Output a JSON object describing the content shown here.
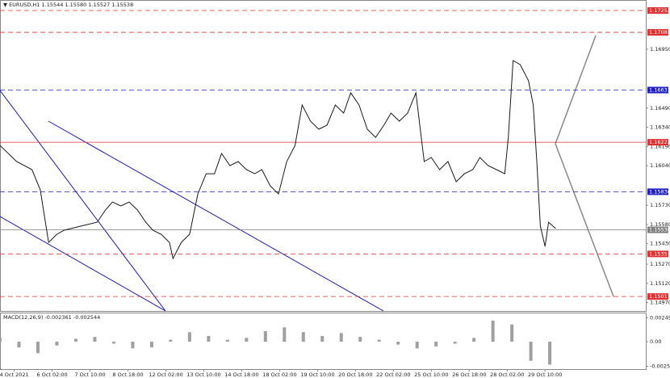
{
  "chart_data": {
    "type": "line",
    "title": "▼ EURUSD,H1  1.15544 1.15580 1.15527 1.15538",
    "x": [
      0,
      14,
      27,
      34,
      41,
      48,
      54,
      68,
      82,
      89,
      95,
      102,
      109,
      116,
      123,
      129,
      136,
      143,
      146,
      153,
      160,
      167,
      174,
      181,
      187,
      194,
      201,
      208,
      215,
      221,
      228,
      235,
      242,
      249,
      255,
      262,
      269,
      276,
      283,
      290,
      296,
      303,
      310,
      317,
      324,
      330,
      337,
      344,
      351,
      358,
      364,
      371,
      378,
      385,
      392,
      399,
      405,
      412,
      419,
      426,
      429,
      433,
      439,
      446,
      450,
      453,
      456,
      460,
      463,
      469
    ],
    "values": [
      1.16198,
      1.16072,
      1.16009,
      1.15851,
      1.1544,
      1.15504,
      1.15535,
      1.15567,
      1.15598,
      1.15693,
      1.15756,
      1.15725,
      1.15756,
      1.15693,
      1.15598,
      1.15535,
      1.15504,
      1.1544,
      1.15314,
      1.1544,
      1.15504,
      1.15819,
      1.15977,
      1.15977,
      1.16135,
      1.1604,
      1.16072,
      1.16009,
      1.15977,
      1.16009,
      1.15882,
      1.15819,
      1.16072,
      1.16198,
      1.16514,
      1.16388,
      1.16325,
      1.16356,
      1.16514,
      1.16451,
      1.16609,
      1.16514,
      1.16325,
      1.16261,
      1.16356,
      1.16451,
      1.16388,
      1.16451,
      1.16609,
      1.16072,
      1.16104,
      1.16009,
      1.16072,
      1.15914,
      1.15977,
      1.16009,
      1.16104,
      1.1604,
      1.16009,
      1.15977,
      1.16261,
      1.16861,
      1.1683,
      1.16704,
      1.16514,
      1.16072,
      1.15567,
      1.15409,
      1.15598,
      1.15548
    ],
    "color": "#1a1a1a",
    "xlim": [
      0,
      545
    ],
    "ylim": [
      1.14904,
      1.17335
    ],
    "xticks": [
      {
        "value": 12,
        "label": "4 Oct 2021"
      },
      {
        "value": 44,
        "label": "6 Oct 02:00"
      },
      {
        "value": 76,
        "label": "7 Oct 10:00"
      },
      {
        "value": 108,
        "label": "8 Oct 18:00"
      },
      {
        "value": 140,
        "label": "12 Oct 02:00"
      },
      {
        "value": 172,
        "label": "13 Oct 10:00"
      },
      {
        "value": 204,
        "label": "14 Oct 18:00"
      },
      {
        "value": 236,
        "label": "18 Oct 02:00"
      },
      {
        "value": 268,
        "label": "19 Oct 10:00"
      },
      {
        "value": 300,
        "label": "20 Oct 18:00"
      },
      {
        "value": 332,
        "label": "22 Oct 02:00"
      },
      {
        "value": 364,
        "label": "25 Oct 10:00"
      },
      {
        "value": 396,
        "label": "26 Oct 18:00"
      },
      {
        "value": 428,
        "label": "28 Oct 02:00"
      },
      {
        "value": 460,
        "label": "29 Oct 10:00"
      }
    ],
    "yticks": [
      {
        "value": 1.1695,
        "label": "1.16950"
      },
      {
        "value": 1.1649,
        "label": "1.16490"
      },
      {
        "value": 1.1634,
        "label": "1.16340"
      },
      {
        "value": 1.1619,
        "label": "1.16190"
      },
      {
        "value": 1.1604,
        "label": "1.16040"
      },
      {
        "value": 1.1573,
        "label": "1.15730"
      },
      {
        "value": 1.1558,
        "label": "1.15580"
      },
      {
        "value": 1.1543,
        "label": "1.15430"
      },
      {
        "value": 1.1527,
        "label": "1.15270"
      },
      {
        "value": 1.1512,
        "label": "1.15120"
      },
      {
        "value": 1.1497,
        "label": "1.14970"
      }
    ],
    "levels": [
      {
        "value": 1.17253,
        "color": "#e03030",
        "dash": true
      },
      {
        "value": 1.17082,
        "color": "#e03030",
        "dash": true
      },
      {
        "value": 1.16631,
        "color": "#2020c0",
        "dash": true
      },
      {
        "value": 1.16223,
        "color": "#e03030",
        "dash": false
      },
      {
        "value": 1.15836,
        "color": "#2020c0",
        "dash": true
      },
      {
        "value": 1.15538,
        "color": "#808080",
        "dash": false
      },
      {
        "value": 1.1535,
        "color": "#e03030",
        "dash": true
      },
      {
        "value": 1.15017,
        "color": "#e03030",
        "dash": true
      }
    ],
    "macd": {
      "label": "MACD(12,26,9) -0.002361 -0.002544",
      "x": [
        0,
        16,
        32,
        48,
        64,
        80,
        96,
        112,
        128,
        144,
        160,
        176,
        192,
        208,
        224,
        240,
        256,
        272,
        288,
        304,
        320,
        336,
        352,
        368,
        384,
        400,
        416,
        432,
        448,
        464
      ],
      "values": [
        0.0004,
        -0.0006,
        -0.0012,
        -0.0004,
        0.0003,
        0.0005,
        -0.0002,
        -0.0007,
        -0.0006,
        0.0002,
        0.001,
        0.0006,
        0.0002,
        0.0004,
        0.0011,
        0.0015,
        0.001,
        0.0006,
        0.0009,
        0.0005,
        0.0002,
        -0.0003,
        -0.0007,
        -0.0005,
        -0.0002,
        0.0004,
        0.0022,
        0.0018,
        -0.002,
        -0.0024
      ],
      "color": "#a0a0a0",
      "ylim": [
        -0.00287,
        0.00296
      ],
      "yticks": [
        0.002499,
        {
          "value": 0,
          "label": "0.00"
        },
        -0.002574
      ]
    }
  }
}
